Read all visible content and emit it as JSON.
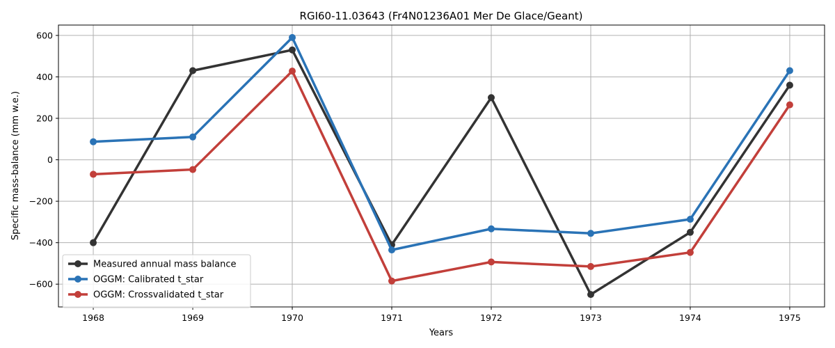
{
  "chart_data": {
    "type": "line",
    "title": "RGI60-11.03643 (Fr4N01236A01 Mer De Glace/Geant)",
    "xlabel": "Years",
    "ylabel": "Specific mass-balance (mm w.e.)",
    "x": [
      1968,
      1969,
      1970,
      1971,
      1972,
      1973,
      1974,
      1975
    ],
    "xlim": [
      1967.65,
      1975.35
    ],
    "ylim": [
      -710,
      650
    ],
    "xticks": [
      "1968",
      "1969",
      "1970",
      "1971",
      "1972",
      "1973",
      "1974",
      "1975"
    ],
    "yticks": [
      -600,
      -400,
      -200,
      0,
      200,
      400,
      600
    ],
    "ytick_labels": [
      "−600",
      "−400",
      "−200",
      "0",
      "200",
      "400",
      "600"
    ],
    "grid": true,
    "legend_position": "lower-left",
    "series": [
      {
        "name": "Measured annual mass balance",
        "color": "#333333",
        "values": [
          -400,
          430,
          530,
          -410,
          300,
          -650,
          -350,
          360
        ]
      },
      {
        "name": "OGGM: Calibrated t_star",
        "color": "#2a73b6",
        "values": [
          87,
          110,
          590,
          -435,
          -333,
          -355,
          -287,
          430
        ]
      },
      {
        "name": "OGGM: Crossvalidated t_star",
        "color": "#c23f3a",
        "values": [
          -70,
          -47,
          428,
          -585,
          -493,
          -515,
          -447,
          265
        ]
      }
    ]
  }
}
